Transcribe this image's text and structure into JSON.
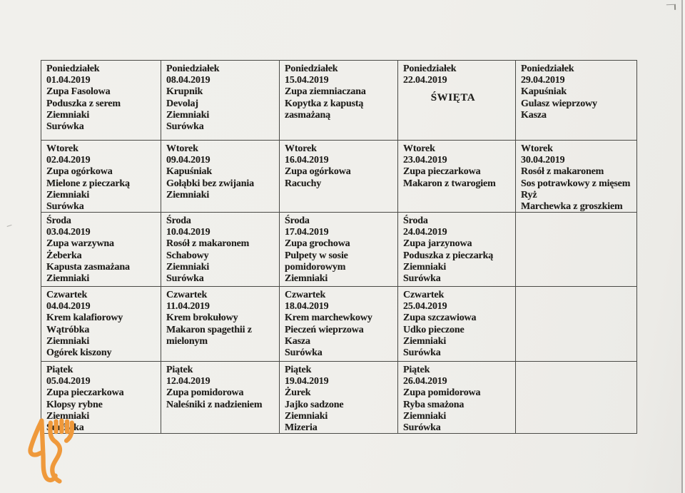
{
  "document_kind": "scanned lunch menu table (Polish), April 2019",
  "colors": {
    "paper": "#f0efeb",
    "table_border": "#4a4a46",
    "text": "#21201d",
    "logo_orange": "#ef993b"
  },
  "logo": {
    "icon": "cutlery-logo",
    "description": "orange line-art fork and stylized knife"
  },
  "menu": {
    "rows": [
      {
        "cells": [
          {
            "day": "Poniedziałek",
            "date": "01.04.2019",
            "items": [
              "Zupa Fasolowa",
              "Poduszka z serem",
              "Ziemniaki",
              "Surówka"
            ]
          },
          {
            "day": "Poniedziałek",
            "date": "08.04.2019",
            "items": [
              "Krupnik",
              "Devolaj",
              "Ziemniaki",
              "Surówka"
            ]
          },
          {
            "day": "Poniedziałek",
            "date": "15.04.2019",
            "items": [
              "Zupa ziemniaczana",
              "Kopytka z kapustą zasmażaną"
            ]
          },
          {
            "day": "Poniedziałek",
            "date": "22.04.2019",
            "items": [
              "ŚWIĘTA"
            ],
            "centered": true
          },
          {
            "day": "Poniedziałek",
            "date": "29.04.2019",
            "items": [
              "Kapuśniak",
              "Gulasz wieprzowy",
              "Kasza"
            ]
          }
        ]
      },
      {
        "cells": [
          {
            "day": "Wtorek",
            "date": "02.04.2019",
            "items": [
              "Zupa ogórkowa",
              "Mielone z pieczarką",
              "Ziemniaki",
              "Surówka"
            ]
          },
          {
            "day": "Wtorek",
            "date": "09.04.2019",
            "items": [
              "Kapuśniak",
              "Gołąbki bez zwijania",
              "Ziemniaki"
            ]
          },
          {
            "day": "Wtorek",
            "date": "16.04.2019",
            "items": [
              "Zupa ogórkowa",
              "Racuchy"
            ]
          },
          {
            "day": "Wtorek",
            "date": "23.04.2019",
            "items": [
              "Zupa pieczarkowa",
              "Makaron z twarogiem"
            ]
          },
          {
            "day": "Wtorek",
            "date": "30.04.2019",
            "items": [
              "Rosół z makaronem",
              "Sos potrawkowy z mięsem",
              "Ryż",
              "Marchewka z groszkiem"
            ]
          }
        ]
      },
      {
        "cells": [
          {
            "day": "Środa",
            "date": "03.04.2019",
            "items": [
              "Zupa warzywna",
              "Żeberka",
              "Kapusta zasmażana",
              "Ziemniaki"
            ]
          },
          {
            "day": "Środa",
            "date": "10.04.2019",
            "items": [
              "Rosół z makaronem",
              "Schabowy",
              "Ziemniaki",
              "Surówka"
            ]
          },
          {
            "day": "Środa",
            "date": "17.04.2019",
            "items": [
              "Zupa grochowa",
              "Pulpety w sosie pomidorowym",
              "Ziemniaki"
            ]
          },
          {
            "day": "Środa",
            "date": "24.04.2019",
            "items": [
              "Zupa jarzynowa",
              "Poduszka z pieczarką",
              "Ziemniaki",
              "Surówka"
            ]
          },
          {
            "day": "",
            "date": "",
            "items": []
          }
        ]
      },
      {
        "cells": [
          {
            "day": "Czwartek",
            "date": "04.04.2019",
            "items": [
              "Krem kalafiorowy",
              "Wątróbka",
              "Ziemniaki",
              "Ogórek kiszony"
            ]
          },
          {
            "day": "Czwartek",
            "date": "11.04.2019",
            "items": [
              "Krem brokułowy",
              "Makaron spagethii z mielonym"
            ]
          },
          {
            "day": "Czwartek",
            "date": "18.04.2019",
            "items": [
              "Krem marchewkowy",
              "Pieczeń wieprzowa",
              "Kasza",
              "Surówka"
            ]
          },
          {
            "day": "Czwartek",
            "date": "25.04.2019",
            "items": [
              "Zupa szczawiowa",
              "Udko pieczone",
              "Ziemniaki",
              "Surówka"
            ]
          },
          {
            "day": "",
            "date": "",
            "items": []
          }
        ]
      },
      {
        "cells": [
          {
            "day": "Piątek",
            "date": "05.04.2019",
            "items": [
              "Zupa pieczarkowa",
              "Klopsy rybne",
              "Ziemniaki",
              "Surówka"
            ]
          },
          {
            "day": "Piątek",
            "date": "12.04.2019",
            "items": [
              "Zupa pomidorowa",
              "Naleśniki z nadzieniem"
            ]
          },
          {
            "day": "Piątek",
            "date": "19.04.2019",
            "items": [
              "Żurek",
              "Jajko sadzone",
              "Ziemniaki",
              "Mizeria"
            ]
          },
          {
            "day": "Piątek",
            "date": "26.04.2019",
            "items": [
              "Zupa pomidorowa",
              "Ryba smażona",
              "Ziemniaki",
              "Surówka"
            ]
          },
          {
            "day": "",
            "date": "",
            "items": []
          }
        ]
      }
    ]
  }
}
